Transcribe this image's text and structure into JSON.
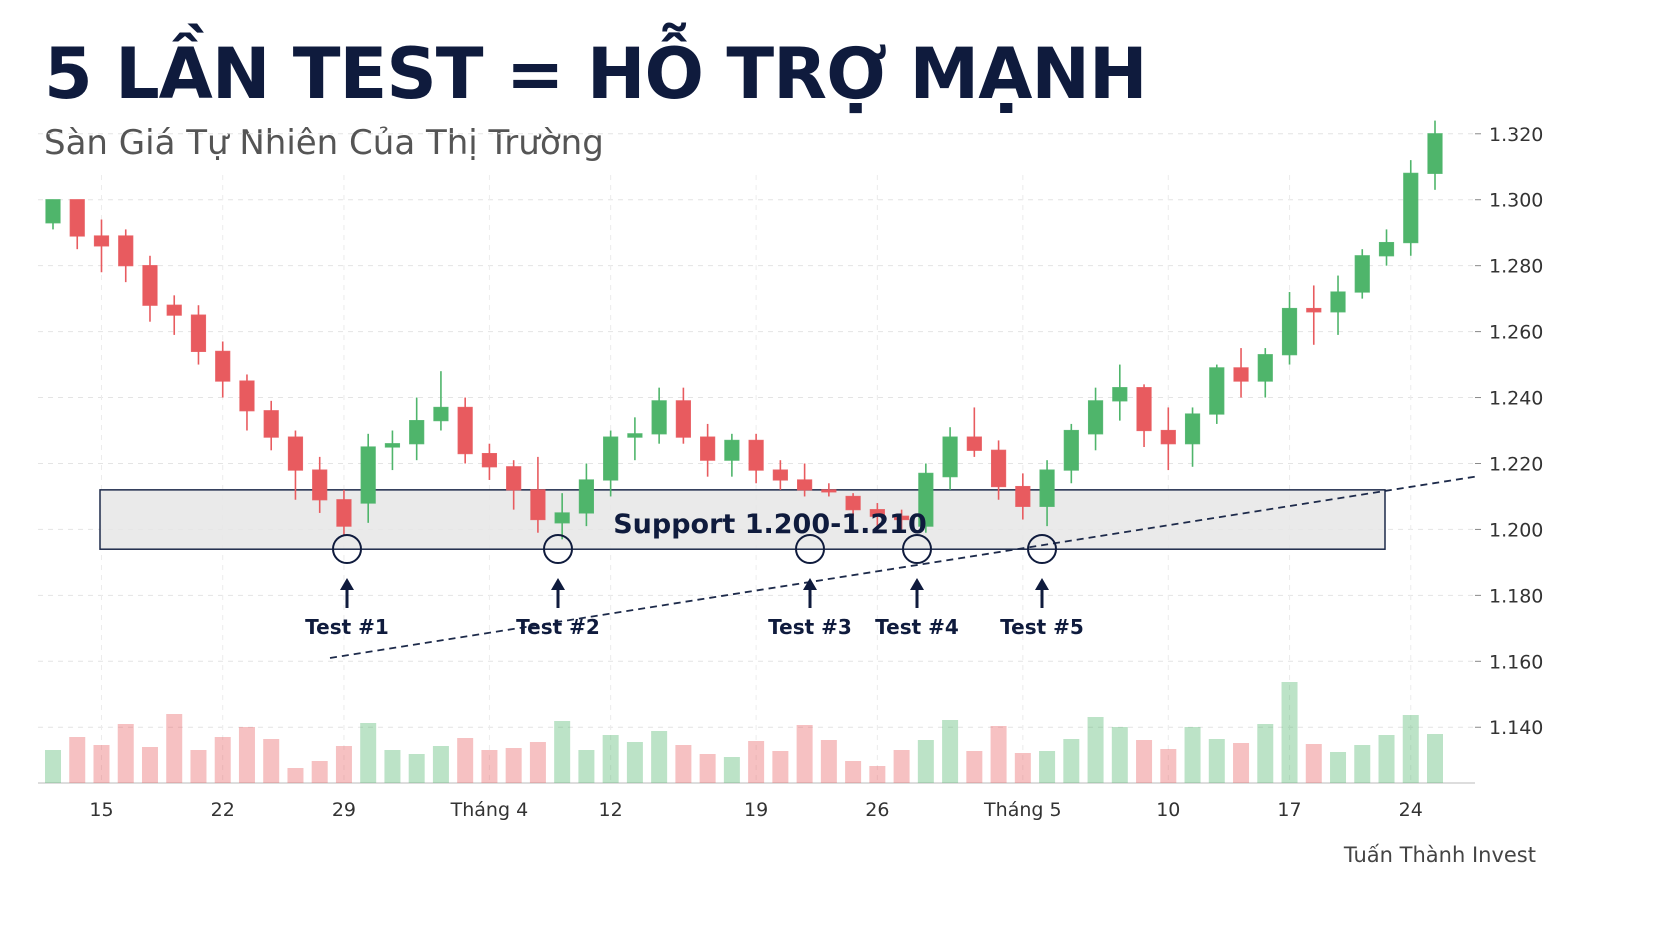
{
  "chart_data": {
    "type": "candlestick",
    "title": "5 LẦN TEST = HỖ TRỢ MẠNH",
    "subtitle": "Sàn Giá Tự Nhiên Của Thị Trường",
    "watermark": "Tuấn Thành Invest",
    "support_label": "Support 1.200-1.210",
    "support_zone": [
      1.194,
      1.212
    ],
    "trendline": [
      1.161,
      1.216
    ],
    "annotations": [
      "Test #1",
      "Test #2",
      "Test #3",
      "Test #4",
      "Test #5"
    ],
    "categories": [
      null,
      null,
      "15",
      null,
      null,
      null,
      null,
      "22",
      null,
      null,
      null,
      null,
      "29",
      null,
      null,
      null,
      null,
      null,
      "Tháng 4",
      null,
      null,
      null,
      null,
      "12",
      null,
      null,
      null,
      null,
      null,
      "19",
      null,
      null,
      null,
      null,
      "26",
      null,
      null,
      null,
      null,
      null,
      "Tháng 5",
      null,
      null,
      null,
      null,
      null,
      "10",
      null,
      null,
      null,
      null,
      "17",
      null,
      null,
      null,
      null,
      "24",
      null
    ],
    "open": [
      1.293,
      1.3,
      1.289,
      1.289,
      1.28,
      1.268,
      1.265,
      1.254,
      1.245,
      1.236,
      1.228,
      1.218,
      1.209,
      1.208,
      1.225,
      1.226,
      1.233,
      1.237,
      1.223,
      1.219,
      1.212,
      1.202,
      1.205,
      1.215,
      1.228,
      1.229,
      1.239,
      1.228,
      1.221,
      1.227,
      1.218,
      1.215,
      1.212,
      1.21,
      1.206,
      1.204,
      1.201,
      1.216,
      1.228,
      1.224,
      1.213,
      1.207,
      1.218,
      1.229,
      1.239,
      1.243,
      1.23,
      1.226,
      1.235,
      1.249,
      1.245,
      1.253,
      1.267,
      1.266,
      1.272,
      1.283,
      1.287,
      1.308
    ],
    "high": [
      1.3,
      1.3,
      1.294,
      1.291,
      1.283,
      1.271,
      1.268,
      1.257,
      1.247,
      1.239,
      1.23,
      1.222,
      1.212,
      1.229,
      1.23,
      1.24,
      1.248,
      1.24,
      1.226,
      1.221,
      1.222,
      1.211,
      1.22,
      1.23,
      1.234,
      1.243,
      1.243,
      1.232,
      1.229,
      1.229,
      1.221,
      1.22,
      1.214,
      1.211,
      1.208,
      1.206,
      1.22,
      1.231,
      1.237,
      1.227,
      1.217,
      1.221,
      1.232,
      1.243,
      1.25,
      1.244,
      1.237,
      1.237,
      1.25,
      1.255,
      1.255,
      1.272,
      1.274,
      1.277,
      1.285,
      1.291,
      1.312,
      1.324
    ],
    "low": [
      1.291,
      1.285,
      1.278,
      1.275,
      1.263,
      1.259,
      1.25,
      1.24,
      1.23,
      1.224,
      1.209,
      1.205,
      1.198,
      1.202,
      1.218,
      1.221,
      1.23,
      1.22,
      1.215,
      1.206,
      1.199,
      1.197,
      1.201,
      1.21,
      1.221,
      1.226,
      1.226,
      1.216,
      1.216,
      1.214,
      1.212,
      1.21,
      1.21,
      1.204,
      1.201,
      1.2,
      1.199,
      1.212,
      1.222,
      1.209,
      1.203,
      1.201,
      1.214,
      1.224,
      1.233,
      1.225,
      1.218,
      1.219,
      1.232,
      1.24,
      1.24,
      1.25,
      1.256,
      1.259,
      1.27,
      1.28,
      1.283,
      1.303
    ],
    "close": [
      1.3,
      1.289,
      1.286,
      1.28,
      1.268,
      1.265,
      1.254,
      1.245,
      1.236,
      1.228,
      1.218,
      1.209,
      1.201,
      1.225,
      1.226,
      1.233,
      1.237,
      1.223,
      1.219,
      1.212,
      1.203,
      1.205,
      1.215,
      1.228,
      1.229,
      1.239,
      1.228,
      1.221,
      1.227,
      1.218,
      1.215,
      1.212,
      1.2115,
      1.206,
      1.204,
      1.203,
      1.217,
      1.228,
      1.224,
      1.213,
      1.207,
      1.218,
      1.23,
      1.239,
      1.243,
      1.23,
      1.226,
      1.235,
      1.249,
      1.245,
      1.253,
      1.267,
      1.266,
      1.272,
      1.283,
      1.287,
      1.308,
      1.32
    ],
    "volume": [
      33,
      46,
      38,
      59,
      36,
      69,
      33,
      46,
      56,
      44,
      15,
      22,
      37,
      60,
      33,
      29,
      37,
      45,
      33,
      35,
      41,
      62,
      33,
      48,
      41,
      52,
      38,
      29,
      26,
      42,
      32,
      58,
      43,
      22,
      17,
      33,
      43,
      63,
      32,
      57,
      30,
      32,
      44,
      66,
      56,
      43,
      34,
      56,
      44,
      40,
      59,
      101,
      39,
      31,
      38,
      48,
      68,
      49
    ],
    "up_color": "#4fb56b",
    "down_color": "#e85b5f",
    "ylim": [
      1.124,
      1.326
    ],
    "yticks": [
      {
        "value": 1.14,
        "label": "1.140"
      },
      {
        "value": 1.16,
        "label": "1.160"
      },
      {
        "value": 1.18,
        "label": "1.180"
      },
      {
        "value": 1.2,
        "label": "1.200"
      },
      {
        "value": 1.22,
        "label": "1.220"
      },
      {
        "value": 1.24,
        "label": "1.240"
      },
      {
        "value": 1.26,
        "label": "1.260"
      },
      {
        "value": 1.28,
        "label": "1.280"
      },
      {
        "value": 1.3,
        "label": "1.300"
      },
      {
        "value": 1.32,
        "label": "1.320"
      }
    ],
    "grid": true
  }
}
